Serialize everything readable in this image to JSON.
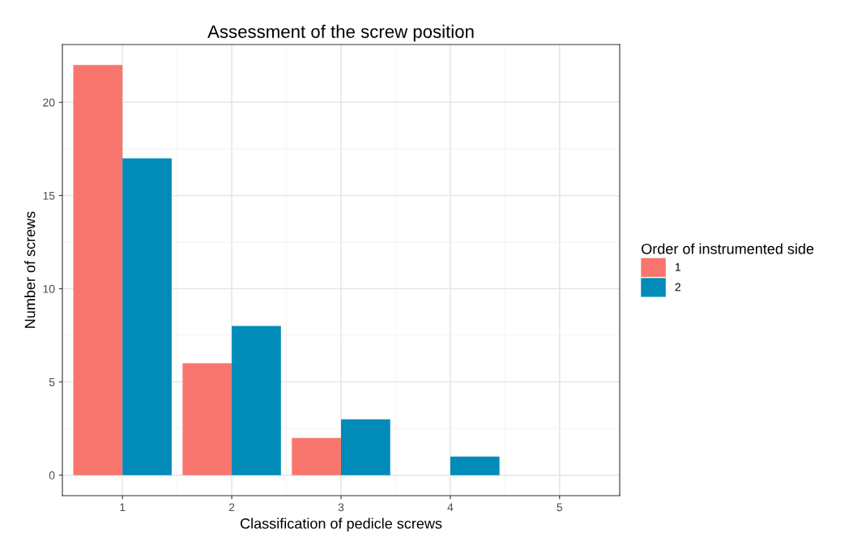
{
  "chart_data": {
    "type": "bar",
    "title": "Assessment of the screw position",
    "xlabel": "Classification of pedicle screws",
    "ylabel": "Number of screws",
    "legend_title": "Order of instrumented side",
    "x": [
      1,
      2,
      3,
      4
    ],
    "series": [
      {
        "name": "1",
        "color": "#f8766d",
        "values": [
          22,
          6,
          2,
          null
        ]
      },
      {
        "name": "2",
        "color": "#008bb8",
        "values": [
          17,
          8,
          3,
          1
        ]
      }
    ],
    "xlim": [
      0.45,
      5.55
    ],
    "xticks": [
      1,
      2,
      3,
      4,
      5
    ],
    "ylim": [
      -1.1,
      23.1
    ],
    "yticks": [
      0,
      5,
      10,
      15,
      20
    ],
    "grid": true,
    "legend": "right"
  }
}
